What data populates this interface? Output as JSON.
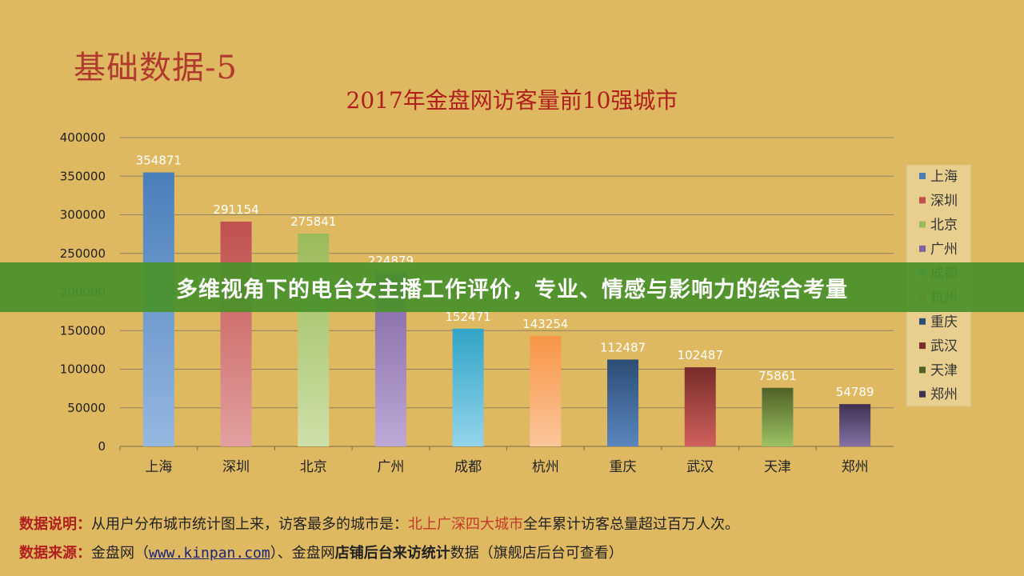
{
  "slide_title": "基础数据-5",
  "banner": {
    "text": "多维视角下的电台女主播工作评价，专业、情感与影响力的综合考量"
  },
  "notes": {
    "line1_key": "数据说明：",
    "line1_a": "从用户分布城市统计图上来，访客最多的城市是：",
    "line1_highlight": "北上广深四大城市",
    "line1_b": "全年累计访客总量超过百万人次。",
    "line2_key": "数据来源：",
    "line2_a": "金盘网（",
    "line2_link": "www.kinpan.com",
    "line2_b": "）、金盘网",
    "line2_bold": "店铺后台来访统计",
    "line2_c": "数据（旗舰店后台可查看）"
  },
  "chart_data": {
    "type": "bar",
    "title": "2017年金盘网访客量前10强城市",
    "categories": [
      "上海",
      "深圳",
      "北京",
      "广州",
      "成都",
      "杭州",
      "重庆",
      "武汉",
      "天津",
      "郑州"
    ],
    "values": [
      354871,
      291154,
      275841,
      224879,
      152471,
      143254,
      112487,
      102487,
      75861,
      54789
    ],
    "ylim": [
      0,
      400000
    ],
    "yticks": [
      0,
      50000,
      100000,
      150000,
      200000,
      250000,
      300000,
      350000,
      400000
    ],
    "grid": true,
    "legend": "right",
    "colors": [
      [
        "#4a7ebb",
        "#95b8e0"
      ],
      [
        "#c0504d",
        "#e3a0a0"
      ],
      [
        "#9bbb59",
        "#cde0a8"
      ],
      [
        "#8064a2",
        "#bda9d6"
      ],
      [
        "#31a4c7",
        "#93d4ea"
      ],
      [
        "#f79646",
        "#fbc69b"
      ],
      [
        "#2c4d75",
        "#5a86be"
      ],
      [
        "#772c2a",
        "#d0605c"
      ],
      [
        "#4f6228",
        "#9cc263"
      ],
      [
        "#3f3151",
        "#8470a6"
      ]
    ]
  }
}
